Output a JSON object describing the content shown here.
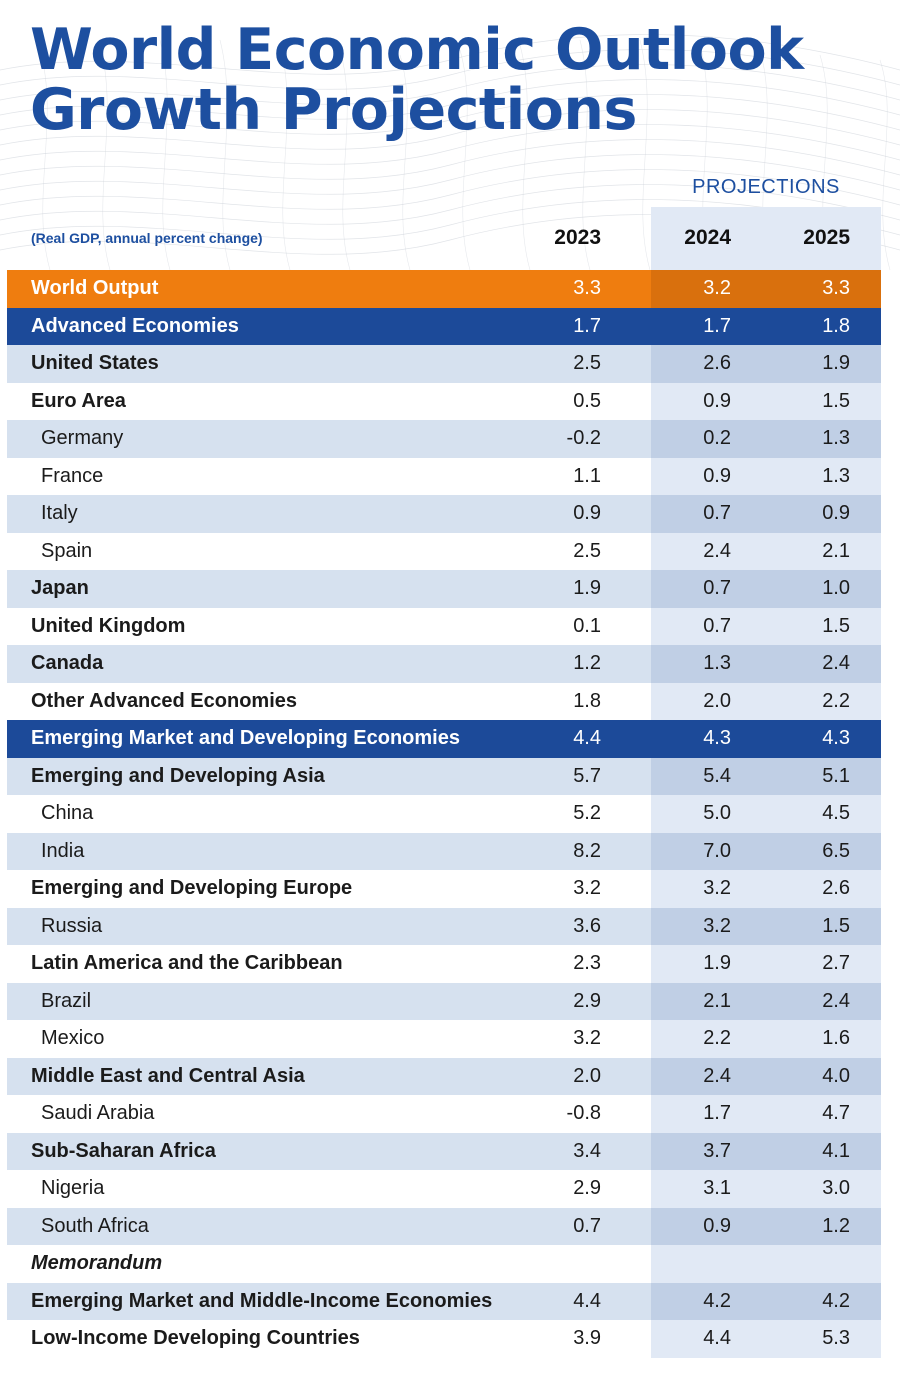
{
  "title_line1": "World Economic Outlook",
  "title_line2": "Growth Projections",
  "projections_label": "PROJECTIONS",
  "subtitle": "(Real GDP, annual percent change)",
  "years": [
    "2023",
    "2024",
    "2025"
  ],
  "colors": {
    "brand_blue": "#1d4fa0",
    "world_output_orange": "#ef7d0f",
    "navy_band": "#1c4a99"
  },
  "rows": [
    {
      "label": "World Output",
      "v2023": "3.3",
      "v2024": "3.2",
      "v2025": "3.3"
    },
    {
      "label": "Advanced Economies",
      "v2023": "1.7",
      "v2024": "1.7",
      "v2025": "1.8"
    },
    {
      "label": "United States",
      "v2023": "2.5",
      "v2024": "2.6",
      "v2025": "1.9"
    },
    {
      "label": "Euro Area",
      "v2023": "0.5",
      "v2024": "0.9",
      "v2025": "1.5"
    },
    {
      "label": "Germany",
      "v2023": "-0.2",
      "v2024": "0.2",
      "v2025": "1.3"
    },
    {
      "label": "France",
      "v2023": "1.1",
      "v2024": "0.9",
      "v2025": "1.3"
    },
    {
      "label": "Italy",
      "v2023": "0.9",
      "v2024": "0.7",
      "v2025": "0.9"
    },
    {
      "label": "Spain",
      "v2023": "2.5",
      "v2024": "2.4",
      "v2025": "2.1"
    },
    {
      "label": "Japan",
      "v2023": "1.9",
      "v2024": "0.7",
      "v2025": "1.0"
    },
    {
      "label": "United Kingdom",
      "v2023": "0.1",
      "v2024": "0.7",
      "v2025": "1.5"
    },
    {
      "label": "Canada",
      "v2023": "1.2",
      "v2024": "1.3",
      "v2025": "2.4"
    },
    {
      "label": "Other Advanced Economies",
      "v2023": "1.8",
      "v2024": "2.0",
      "v2025": "2.2"
    },
    {
      "label": "Emerging Market and Developing Economies",
      "v2023": "4.4",
      "v2024": "4.3",
      "v2025": "4.3"
    },
    {
      "label": "Emerging and Developing Asia",
      "v2023": "5.7",
      "v2024": "5.4",
      "v2025": "5.1"
    },
    {
      "label": "China",
      "v2023": "5.2",
      "v2024": "5.0",
      "v2025": "4.5"
    },
    {
      "label": "India",
      "v2023": "8.2",
      "v2024": "7.0",
      "v2025": "6.5"
    },
    {
      "label": "Emerging and Developing Europe",
      "v2023": "3.2",
      "v2024": "3.2",
      "v2025": "2.6"
    },
    {
      "label": "Russia",
      "v2023": "3.6",
      "v2024": "3.2",
      "v2025": "1.5"
    },
    {
      "label": "Latin America and the Caribbean",
      "v2023": "2.3",
      "v2024": "1.9",
      "v2025": "2.7"
    },
    {
      "label": "Brazil",
      "v2023": "2.9",
      "v2024": "2.1",
      "v2025": "2.4"
    },
    {
      "label": "Mexico",
      "v2023": "3.2",
      "v2024": "2.2",
      "v2025": "1.6"
    },
    {
      "label": "Middle East and Central Asia",
      "v2023": "2.0",
      "v2024": "2.4",
      "v2025": "4.0"
    },
    {
      "label": "Saudi Arabia",
      "v2023": "-0.8",
      "v2024": "1.7",
      "v2025": "4.7"
    },
    {
      "label": "Sub-Saharan Africa",
      "v2023": "3.4",
      "v2024": "3.7",
      "v2025": "4.1"
    },
    {
      "label": "Nigeria",
      "v2023": "2.9",
      "v2024": "3.1",
      "v2025": "3.0"
    },
    {
      "label": "South Africa",
      "v2023": "0.7",
      "v2024": "0.9",
      "v2025": "1.2"
    },
    {
      "label": "Memorandum",
      "v2023": "",
      "v2024": "",
      "v2025": ""
    },
    {
      "label": "Emerging Market and Middle-Income Economies",
      "v2023": "4.4",
      "v2024": "4.2",
      "v2025": "4.2"
    },
    {
      "label": "Low-Income Developing Countries",
      "v2023": "3.9",
      "v2024": "4.4",
      "v2025": "5.3"
    }
  ]
}
